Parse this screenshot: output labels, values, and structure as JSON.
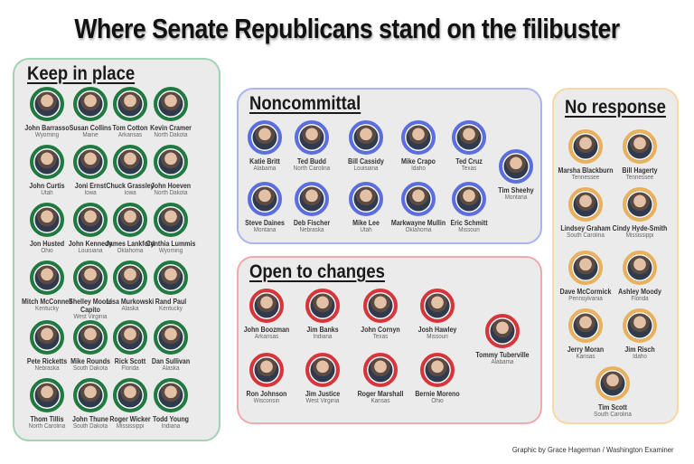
{
  "title": "Where Senate Republicans stand on the filibuster",
  "colors": {
    "keep_in_place": "#1f7a3f",
    "noncommittal": "#5b6ee0",
    "open_to_changes": "#d8353a",
    "no_response": "#e9b15c"
  },
  "groups": {
    "keep": {
      "label": "Keep in place",
      "senators": [
        {
          "name": "John Barrasso",
          "state": "Wyoming"
        },
        {
          "name": "Susan Collins",
          "state": "Maine"
        },
        {
          "name": "Tom Cotton",
          "state": "Arkansas"
        },
        {
          "name": "Kevin Cramer",
          "state": "North Dakota"
        },
        {
          "name": "John Curtis",
          "state": "Utah"
        },
        {
          "name": "Joni Ernst",
          "state": "Iowa"
        },
        {
          "name": "Chuck Grassley",
          "state": "Iowa"
        },
        {
          "name": "John Hoeven",
          "state": "North Dakota"
        },
        {
          "name": "Jon Husted",
          "state": "Ohio"
        },
        {
          "name": "John Kennedy",
          "state": "Louisiana"
        },
        {
          "name": "James Lankford",
          "state": "Oklahoma"
        },
        {
          "name": "Cynthia Lummis",
          "state": "Wyoming"
        },
        {
          "name": "Mitch McConnell",
          "state": "Kentucky"
        },
        {
          "name": "Shelley Moore Capito",
          "state": "West Virginia"
        },
        {
          "name": "Lisa Murkowski",
          "state": "Alaska"
        },
        {
          "name": "Rand Paul",
          "state": "Kentucky"
        },
        {
          "name": "Pete Ricketts",
          "state": "Nebraska"
        },
        {
          "name": "Mike Rounds",
          "state": "South Dakota"
        },
        {
          "name": "Rick Scott",
          "state": "Florida"
        },
        {
          "name": "Dan Sullivan",
          "state": "Alaska"
        },
        {
          "name": "Thom Tillis",
          "state": "North Carolina"
        },
        {
          "name": "John Thune",
          "state": "South Dakota"
        },
        {
          "name": "Roger Wicker",
          "state": "Mississippi"
        },
        {
          "name": "Todd Young",
          "state": "Indiana"
        }
      ]
    },
    "noncommittal": {
      "label": "Noncommittal",
      "senators": [
        {
          "name": "Katie Britt",
          "state": "Alabama"
        },
        {
          "name": "Ted Budd",
          "state": "North Carolina"
        },
        {
          "name": "Bill Cassidy",
          "state": "Louisiana"
        },
        {
          "name": "Mike Crapo",
          "state": "Idaho"
        },
        {
          "name": "Ted Cruz",
          "state": "Texas"
        },
        {
          "name": "Tim Sheehy",
          "state": "Montana"
        },
        {
          "name": "Steve Daines",
          "state": "Montana"
        },
        {
          "name": "Deb Fischer",
          "state": "Nebraska"
        },
        {
          "name": "Mike Lee",
          "state": "Utah"
        },
        {
          "name": "Markwayne Mullin",
          "state": "Oklahoma"
        },
        {
          "name": "Eric Schmitt",
          "state": "Missouri"
        }
      ]
    },
    "open": {
      "label": "Open to changes",
      "senators": [
        {
          "name": "John Boozman",
          "state": "Arkansas"
        },
        {
          "name": "Jim Banks",
          "state": "Indiana"
        },
        {
          "name": "John Cornyn",
          "state": "Texas"
        },
        {
          "name": "Josh Hawley",
          "state": "Missouri"
        },
        {
          "name": "Tommy Tuberville",
          "state": "Alabama"
        },
        {
          "name": "Ron Johnson",
          "state": "Wisconsin"
        },
        {
          "name": "Jim Justice",
          "state": "West Virginia"
        },
        {
          "name": "Roger Marshall",
          "state": "Kansas"
        },
        {
          "name": "Bernie Moreno",
          "state": "Ohio"
        }
      ]
    },
    "noresponse": {
      "label": "No response",
      "senators": [
        {
          "name": "Marsha Blackburn",
          "state": "Tennessee"
        },
        {
          "name": "Bill Hagerty",
          "state": "Tennessee"
        },
        {
          "name": "Lindsey Graham",
          "state": "South Carolina"
        },
        {
          "name": "Cindy Hyde-Smith",
          "state": "Mississippi"
        },
        {
          "name": "Dave McCormick",
          "state": "Pennsylvania"
        },
        {
          "name": "Ashley Moody",
          "state": "Florida"
        },
        {
          "name": "Jerry Moran",
          "state": "Kansas"
        },
        {
          "name": "Jim Risch",
          "state": "Idaho"
        },
        {
          "name": "Tim Scott",
          "state": "South Carolina"
        }
      ]
    }
  },
  "credit": "Graphic by Grace Hagerman / Washington Examiner"
}
